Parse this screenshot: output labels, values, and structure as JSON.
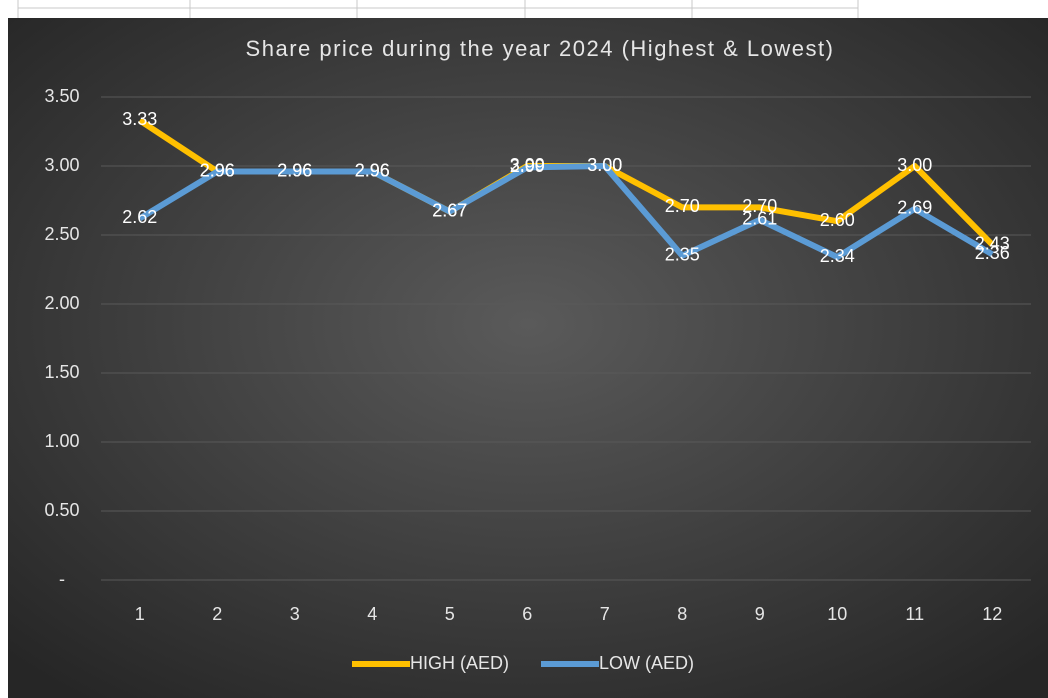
{
  "chart_data": {
    "type": "line",
    "title": "Share price during the year 2024 (Highest & Lowest)",
    "categories": [
      "1",
      "2",
      "3",
      "4",
      "5",
      "6",
      "7",
      "8",
      "9",
      "10",
      "11",
      "12"
    ],
    "series": [
      {
        "name": "HIGH (AED)",
        "color": "#FFC000",
        "values": [
          3.33,
          2.96,
          2.96,
          2.96,
          2.67,
          3.0,
          3.0,
          2.7,
          2.7,
          2.6,
          3.0,
          2.43
        ],
        "value_labels": [
          "3.33",
          "2.96",
          "2.96",
          "2.96",
          "2.67",
          "3.00",
          "3.00",
          "2.70",
          "2.70",
          "2.60",
          "3.00",
          "2.43"
        ]
      },
      {
        "name": "LOW (AED)",
        "color": "#5B9BD5",
        "values": [
          2.62,
          2.96,
          2.96,
          2.96,
          2.67,
          2.99,
          3.0,
          2.35,
          2.61,
          2.34,
          2.69,
          2.36
        ],
        "value_labels": [
          "2.62",
          "2.96",
          "2.96",
          "2.96",
          "2.67",
          "2.99",
          "3.00",
          "2.35",
          "2.61",
          "2.34",
          "2.69",
          "2.36"
        ]
      }
    ],
    "ylim": [
      0,
      3.5
    ],
    "yticks": [
      {
        "value": 0,
        "label": "-"
      },
      {
        "value": 0.5,
        "label": "0.50"
      },
      {
        "value": 1,
        "label": "1.00"
      },
      {
        "value": 1.5,
        "label": "1.50"
      },
      {
        "value": 2,
        "label": "2.00"
      },
      {
        "value": 2.5,
        "label": "2.50"
      },
      {
        "value": 3,
        "label": "3.00"
      },
      {
        "value": 3.5,
        "label": "3.50"
      }
    ],
    "grid": true,
    "legend": "bottom"
  }
}
